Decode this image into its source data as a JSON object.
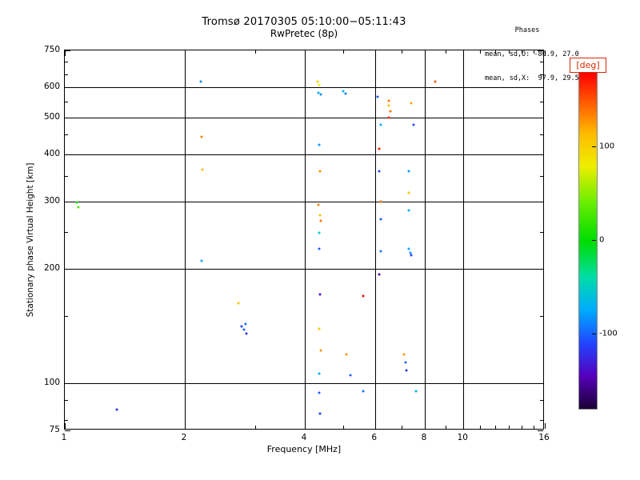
{
  "page": {
    "background": "#ffffff"
  },
  "stats": {
    "header": "Phases",
    "line_o": "mean, sd,O: -86.9, 27.0",
    "line_x": "mean, sd,X:  97.9, 29.5"
  },
  "colorbar": {
    "title": "[deg]",
    "title_color": "#d42a00",
    "range": [
      -180,
      180
    ],
    "tick_labels": [
      {
        "v": 100,
        "label": "100"
      },
      {
        "v": 0,
        "label": "0"
      },
      {
        "v": -100,
        "label": "-100"
      }
    ],
    "stops": [
      [
        180,
        "#ff0000"
      ],
      [
        150,
        "#ff5500"
      ],
      [
        115,
        "#ffbb00"
      ],
      [
        80,
        "#eeee00"
      ],
      [
        40,
        "#66ee00"
      ],
      [
        0,
        "#00dd00"
      ],
      [
        -40,
        "#00ddaa"
      ],
      [
        -75,
        "#00aaff"
      ],
      [
        -110,
        "#2244ff"
      ],
      [
        -145,
        "#5500bb"
      ],
      [
        -180,
        "#1a0033"
      ]
    ]
  },
  "chart_data": {
    "type": "scatter",
    "title": "Tromsø 20170305 05:10:00−05:11:43",
    "subtitle": "RwPretec (8p)",
    "xlabel": "Frequency [MHz]",
    "ylabel": "Stationary phase Virtual Height [km]",
    "xscale": "log",
    "yscale": "log",
    "xlim": [
      1,
      16
    ],
    "ylim": [
      75,
      750
    ],
    "x_ticks": [
      {
        "v": 1,
        "label": "1"
      },
      {
        "v": 2,
        "label": "2"
      },
      {
        "v": 4,
        "label": "4"
      },
      {
        "v": 6,
        "label": "6"
      },
      {
        "v": 8,
        "label": "8"
      },
      {
        "v": 10,
        "label": "10"
      },
      {
        "v": 16,
        "label": "16"
      }
    ],
    "x_minor_ticks": [
      3,
      5,
      7,
      9,
      11,
      12,
      13,
      14,
      15
    ],
    "y_ticks": [
      {
        "v": 750,
        "label": "750"
      },
      {
        "v": 600,
        "label": "600"
      },
      {
        "v": 500,
        "label": "500"
      },
      {
        "v": 400,
        "label": "400"
      },
      {
        "v": 300,
        "label": "300"
      },
      {
        "v": 200,
        "label": "200"
      },
      {
        "v": 100,
        "label": "100"
      },
      {
        "v": 75,
        "label": "75"
      }
    ],
    "y_minor_ticks": [
      80,
      90,
      150,
      250,
      350,
      450,
      550,
      650,
      700
    ],
    "x_gridlines": [
      2,
      4,
      6,
      8,
      10
    ],
    "y_gridlines": [
      100,
      200,
      300,
      400,
      500,
      600
    ],
    "grid": true,
    "legend_position": "colorbar-right",
    "points_format": [
      "freq_MHz",
      "virtual_height_km",
      "phase_deg"
    ],
    "points": [
      [
        1.07,
        298,
        10
      ],
      [
        1.08,
        290,
        25
      ],
      [
        1.35,
        85,
        -120
      ],
      [
        2.19,
        620,
        -85
      ],
      [
        2.2,
        444,
        135
      ],
      [
        2.21,
        365,
        115
      ],
      [
        2.2,
        210,
        -75
      ],
      [
        2.72,
        162,
        110
      ],
      [
        2.78,
        141,
        -110
      ],
      [
        2.82,
        138,
        -100
      ],
      [
        2.86,
        135,
        -120
      ],
      [
        2.84,
        143,
        -95
      ],
      [
        4.3,
        620,
        100
      ],
      [
        4.35,
        610,
        80
      ],
      [
        4.33,
        580,
        -70
      ],
      [
        4.38,
        575,
        -85
      ],
      [
        4.35,
        423,
        -80
      ],
      [
        4.36,
        360,
        130
      ],
      [
        4.33,
        295,
        135
      ],
      [
        4.36,
        277,
        110
      ],
      [
        4.39,
        267,
        140
      ],
      [
        4.35,
        248,
        -60
      ],
      [
        4.34,
        225,
        -100
      ],
      [
        4.36,
        171,
        -140
      ],
      [
        4.34,
        139,
        105
      ],
      [
        4.38,
        122,
        130
      ],
      [
        4.35,
        106,
        -75
      ],
      [
        4.34,
        94,
        -100
      ],
      [
        4.36,
        83,
        -115
      ],
      [
        5.0,
        585,
        -70
      ],
      [
        5.06,
        578,
        -90
      ],
      [
        5.08,
        119,
        130
      ],
      [
        5.2,
        105,
        -100
      ],
      [
        5.6,
        169,
        175
      ],
      [
        5.6,
        95,
        -95
      ],
      [
        6.1,
        566,
        -100
      ],
      [
        6.2,
        478,
        -70
      ],
      [
        6.15,
        413,
        170
      ],
      [
        6.15,
        360,
        -110
      ],
      [
        6.2,
        300,
        140
      ],
      [
        6.2,
        270,
        -100
      ],
      [
        6.2,
        222,
        -90
      ],
      [
        6.15,
        193,
        -150
      ],
      [
        6.5,
        553,
        140
      ],
      [
        6.5,
        537,
        110
      ],
      [
        6.55,
        520,
        140
      ],
      [
        6.5,
        500,
        165
      ],
      [
        7.4,
        545,
        120
      ],
      [
        7.5,
        478,
        -110
      ],
      [
        7.3,
        360,
        -80
      ],
      [
        7.3,
        316,
        110
      ],
      [
        7.3,
        284,
        -70
      ],
      [
        7.28,
        225,
        -75
      ],
      [
        7.35,
        220,
        -85
      ],
      [
        7.4,
        217,
        -110
      ],
      [
        7.1,
        119,
        130
      ],
      [
        7.15,
        113,
        -100
      ],
      [
        7.2,
        108,
        -120
      ],
      [
        7.6,
        95,
        -70
      ],
      [
        8.5,
        620,
        150
      ]
    ]
  }
}
